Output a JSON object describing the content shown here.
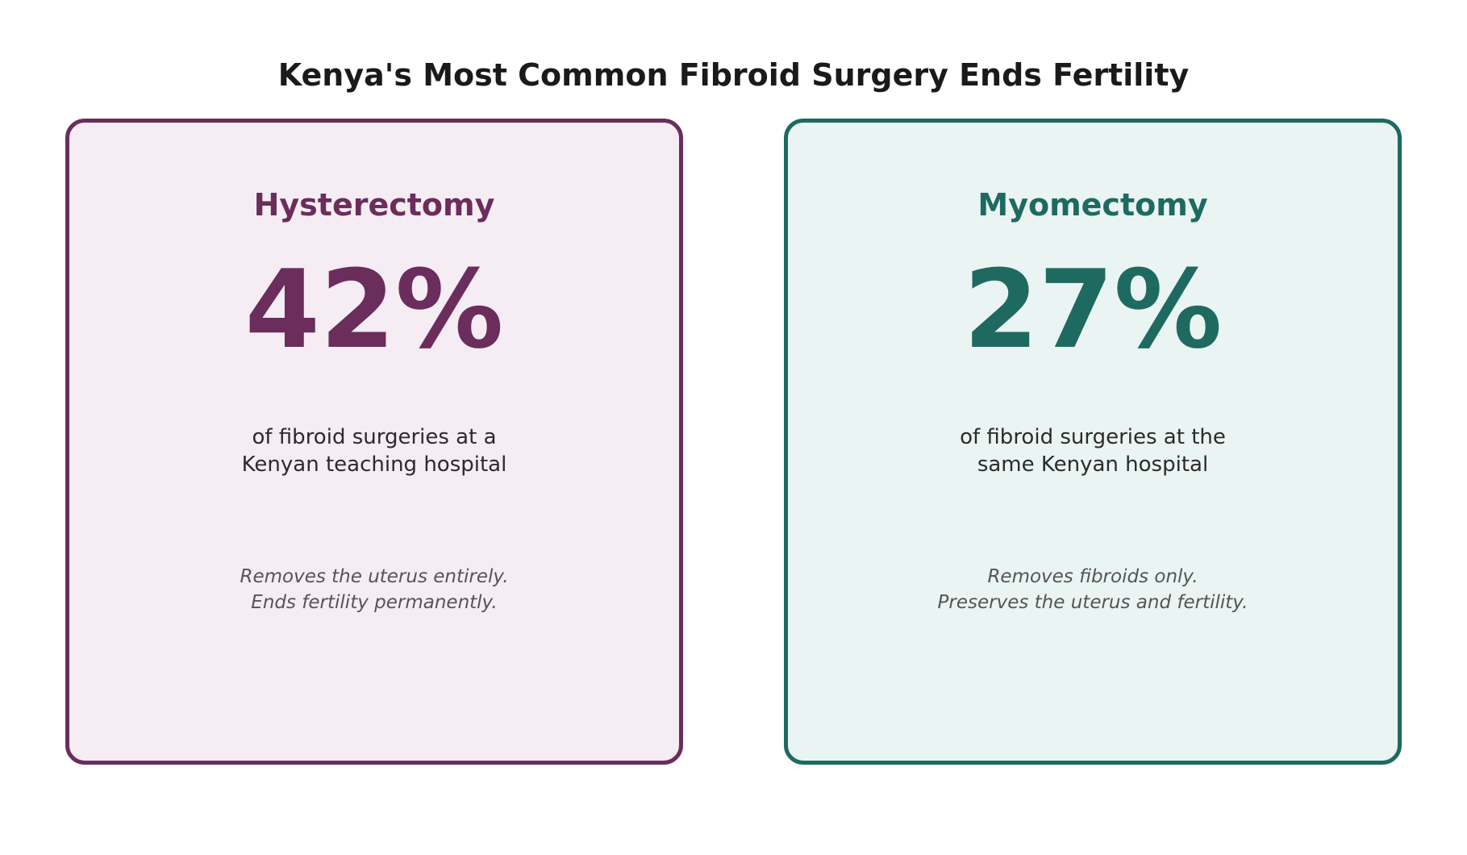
{
  "title": "Kenya's Most Common Fibroid Surgery Ends Fertility",
  "cards": [
    {
      "heading": "Hysterectomy",
      "value": "42%",
      "description": [
        "of fibroid surgeries at a",
        "Kenyan teaching hospital"
      ],
      "note": [
        "Removes the uterus entirely.",
        "Ends fertility permanently."
      ],
      "accent_color": "#6a2d5c",
      "background_color": "#f6ecf3"
    },
    {
      "heading": "Myomectomy",
      "value": "27%",
      "description": [
        "of fibroid surgeries at the",
        "same Kenyan hospital"
      ],
      "note": [
        "Removes fibroids only.",
        "Preserves the uterus and fertility."
      ],
      "accent_color": "#1e6a60",
      "background_color": "#eaf4f2"
    }
  ]
}
